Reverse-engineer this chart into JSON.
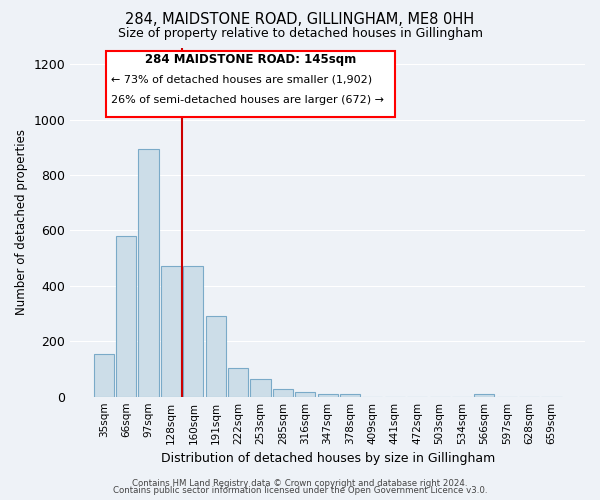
{
  "title": "284, MAIDSTONE ROAD, GILLINGHAM, ME8 0HH",
  "subtitle": "Size of property relative to detached houses in Gillingham",
  "xlabel": "Distribution of detached houses by size in Gillingham",
  "ylabel": "Number of detached properties",
  "bar_color": "#ccdde8",
  "bar_edge_color": "#7aaac8",
  "bin_labels": [
    "35sqm",
    "66sqm",
    "97sqm",
    "128sqm",
    "160sqm",
    "191sqm",
    "222sqm",
    "253sqm",
    "285sqm",
    "316sqm",
    "347sqm",
    "378sqm",
    "409sqm",
    "441sqm",
    "472sqm",
    "503sqm",
    "534sqm",
    "566sqm",
    "597sqm",
    "628sqm",
    "659sqm"
  ],
  "bar_heights": [
    155,
    580,
    893,
    470,
    470,
    290,
    103,
    63,
    27,
    18,
    10,
    8,
    0,
    0,
    0,
    0,
    0,
    10,
    0,
    0,
    0
  ],
  "ylim": [
    0,
    1260
  ],
  "yticks": [
    0,
    200,
    400,
    600,
    800,
    1000,
    1200
  ],
  "annotation_title": "284 MAIDSTONE ROAD: 145sqm",
  "annotation_line1": "← 73% of detached houses are smaller (1,902)",
  "annotation_line2": "26% of semi-detached houses are larger (672) →",
  "footer1": "Contains HM Land Registry data © Crown copyright and database right 2024.",
  "footer2": "Contains public sector information licensed under the Open Government Licence v3.0.",
  "background_color": "#eef2f7",
  "plot_bg_color": "#eef2f7",
  "grid_color": "#ffffff",
  "red_line_color": "#cc0000"
}
